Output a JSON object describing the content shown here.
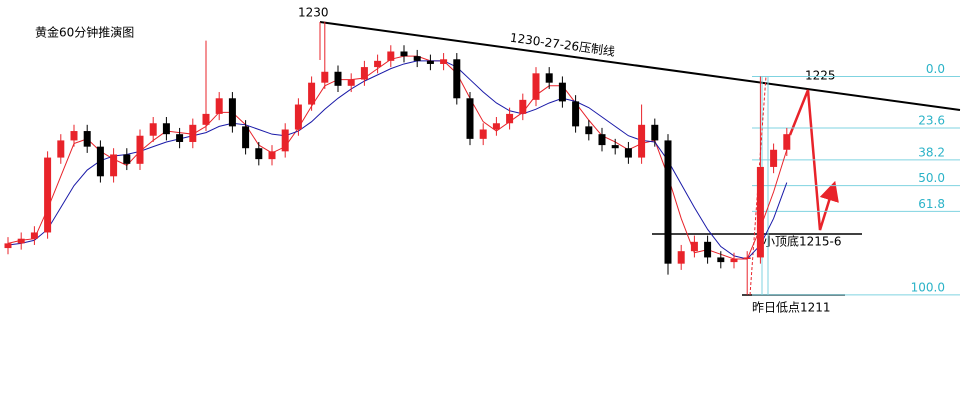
{
  "chart_data": {
    "type": "candlestick",
    "title": "黄金60分钟推演图",
    "ylim": [
      1203.3,
      1229.9
    ],
    "up_color": "#e8232a",
    "down_color": "#000000",
    "open": [
      1214.0,
      1214.3,
      1214.6,
      1215.0,
      1219.8,
      1220.9,
      1221.5,
      1220.5,
      1218.6,
      1220.0,
      1219.4,
      1221.2,
      1222.0,
      1221.3,
      1220.8,
      1221.9,
      1222.6,
      1223.6,
      1221.8,
      1220.4,
      1219.7,
      1220.2,
      1221.6,
      1223.2,
      1224.6,
      1225.3,
      1224.4,
      1224.8,
      1225.6,
      1226.0,
      1226.6,
      1226.3,
      1226.0,
      1225.8,
      1226.1,
      1223.6,
      1221.0,
      1221.6,
      1222.0,
      1222.6,
      1223.5,
      1225.2,
      1224.6,
      1223.4,
      1221.8,
      1221.3,
      1220.6,
      1220.4,
      1219.8,
      1221.9,
      1220.9,
      1213.0,
      1213.8,
      1214.4,
      1213.4,
      1213.1,
      1213.3,
      1213.4,
      1219.2,
      1220.3
    ],
    "high": [
      1214.7,
      1215.0,
      1215.4,
      1220.2,
      1221.3,
      1221.9,
      1221.9,
      1220.9,
      1220.4,
      1220.4,
      1221.6,
      1222.4,
      1222.4,
      1221.7,
      1222.3,
      1227.3,
      1224.0,
      1224.0,
      1222.2,
      1220.8,
      1220.6,
      1222.0,
      1223.6,
      1225.0,
      1228.5,
      1225.7,
      1225.2,
      1226.0,
      1226.4,
      1227.0,
      1227.0,
      1226.7,
      1226.4,
      1226.5,
      1226.5,
      1224.0,
      1222.0,
      1222.4,
      1223.0,
      1223.9,
      1225.6,
      1225.6,
      1225.0,
      1223.8,
      1222.2,
      1221.7,
      1221.0,
      1220.8,
      1223.2,
      1222.3,
      1221.3,
      1214.2,
      1214.8,
      1214.8,
      1213.8,
      1213.7,
      1213.8,
      1225.0,
      1220.7,
      1221.7
    ],
    "low": [
      1213.6,
      1213.9,
      1214.2,
      1214.6,
      1219.4,
      1220.5,
      1220.1,
      1218.2,
      1218.2,
      1219.0,
      1219.0,
      1220.8,
      1220.9,
      1220.4,
      1220.4,
      1221.5,
      1222.2,
      1221.4,
      1220.0,
      1219.3,
      1219.3,
      1219.8,
      1221.2,
      1222.8,
      1224.2,
      1224.0,
      1224.0,
      1224.4,
      1225.2,
      1225.6,
      1225.9,
      1225.6,
      1225.4,
      1225.4,
      1223.2,
      1220.6,
      1220.6,
      1221.2,
      1221.6,
      1222.2,
      1223.1,
      1224.2,
      1223.0,
      1221.4,
      1220.9,
      1220.2,
      1220.0,
      1219.4,
      1219.4,
      1220.5,
      1212.3,
      1212.6,
      1213.4,
      1213.0,
      1212.7,
      1212.7,
      1211.0,
      1213.0,
      1218.8,
      1219.9
    ],
    "close": [
      1214.3,
      1214.6,
      1215.0,
      1219.8,
      1220.9,
      1221.5,
      1220.5,
      1218.6,
      1220.0,
      1219.4,
      1221.2,
      1222.0,
      1221.3,
      1220.8,
      1221.9,
      1222.6,
      1223.6,
      1221.8,
      1220.4,
      1219.7,
      1220.2,
      1221.6,
      1223.2,
      1224.6,
      1225.3,
      1224.4,
      1224.8,
      1225.6,
      1226.0,
      1226.6,
      1226.3,
      1226.0,
      1225.8,
      1226.1,
      1223.6,
      1221.0,
      1221.6,
      1222.0,
      1222.6,
      1223.5,
      1225.2,
      1224.6,
      1223.4,
      1221.8,
      1221.3,
      1220.6,
      1220.4,
      1219.8,
      1221.9,
      1220.9,
      1213.0,
      1213.8,
      1214.4,
      1213.4,
      1213.1,
      1213.3,
      1213.4,
      1219.2,
      1220.3,
      1221.3
    ],
    "series": [
      {
        "color": "#e8232a",
        "values": [
          1214.3,
          1214.5,
          1214.6,
          1216.5,
          1218.6,
          1220.7,
          1221.0,
          1220.2,
          1219.7,
          1219.3,
          1220.2,
          1220.9,
          1221.5,
          1221.4,
          1221.3,
          1221.8,
          1222.7,
          1222.7,
          1221.9,
          1220.6,
          1220.1,
          1220.5,
          1221.7,
          1223.1,
          1224.4,
          1224.8,
          1224.8,
          1224.9,
          1225.5,
          1226.1,
          1226.3,
          1226.3,
          1226.0,
          1226.0,
          1225.2,
          1223.6,
          1222.1,
          1221.5,
          1222.1,
          1222.7,
          1223.8,
          1224.4,
          1224.4,
          1223.3,
          1222.2,
          1221.2,
          1220.8,
          1220.3,
          1220.7,
          1220.9,
          1218.6,
          1215.9,
          1213.7,
          1213.9,
          1213.6,
          1213.3,
          1213.3,
          1215.3,
          1217.6,
          1220.3
        ]
      },
      {
        "color": "#1a1aa8",
        "values": [
          1214.2,
          1214.3,
          1214.5,
          1215.2,
          1216.6,
          1218.0,
          1219.0,
          1219.6,
          1219.9,
          1220.0,
          1220.2,
          1220.5,
          1220.8,
          1221.0,
          1221.2,
          1221.4,
          1221.8,
          1222.0,
          1221.9,
          1221.6,
          1221.3,
          1221.2,
          1221.5,
          1222.1,
          1222.9,
          1223.6,
          1224.2,
          1224.7,
          1225.1,
          1225.5,
          1225.8,
          1226.0,
          1226.0,
          1226.0,
          1225.6,
          1224.8,
          1224.0,
          1223.3,
          1222.8,
          1222.6,
          1222.9,
          1223.3,
          1223.6,
          1223.4,
          1223.0,
          1222.4,
          1221.8,
          1221.2,
          1220.9,
          1220.8,
          1219.6,
          1218.1,
          1216.6,
          1215.2,
          1214.1,
          1213.5,
          1213.3,
          1214.2,
          1215.9,
          1218.2
        ]
      }
    ],
    "fib": {
      "high": 1225,
      "low": 1211,
      "color": "#7fd3e0",
      "levels": [
        {
          "value": 0,
          "label": "0.0"
        },
        23.6,
        38.2,
        {
          "value": 50,
          "label": "50.0"
        },
        61.8,
        {
          "value": 100,
          "label": "100.0"
        }
      ]
    },
    "annotations": {
      "peak": "1230",
      "trendline": "1230-27-26压制线",
      "target": "1225",
      "minor": "小顶底1215-6",
      "yesterday_low": "昨日低点1211"
    }
  }
}
